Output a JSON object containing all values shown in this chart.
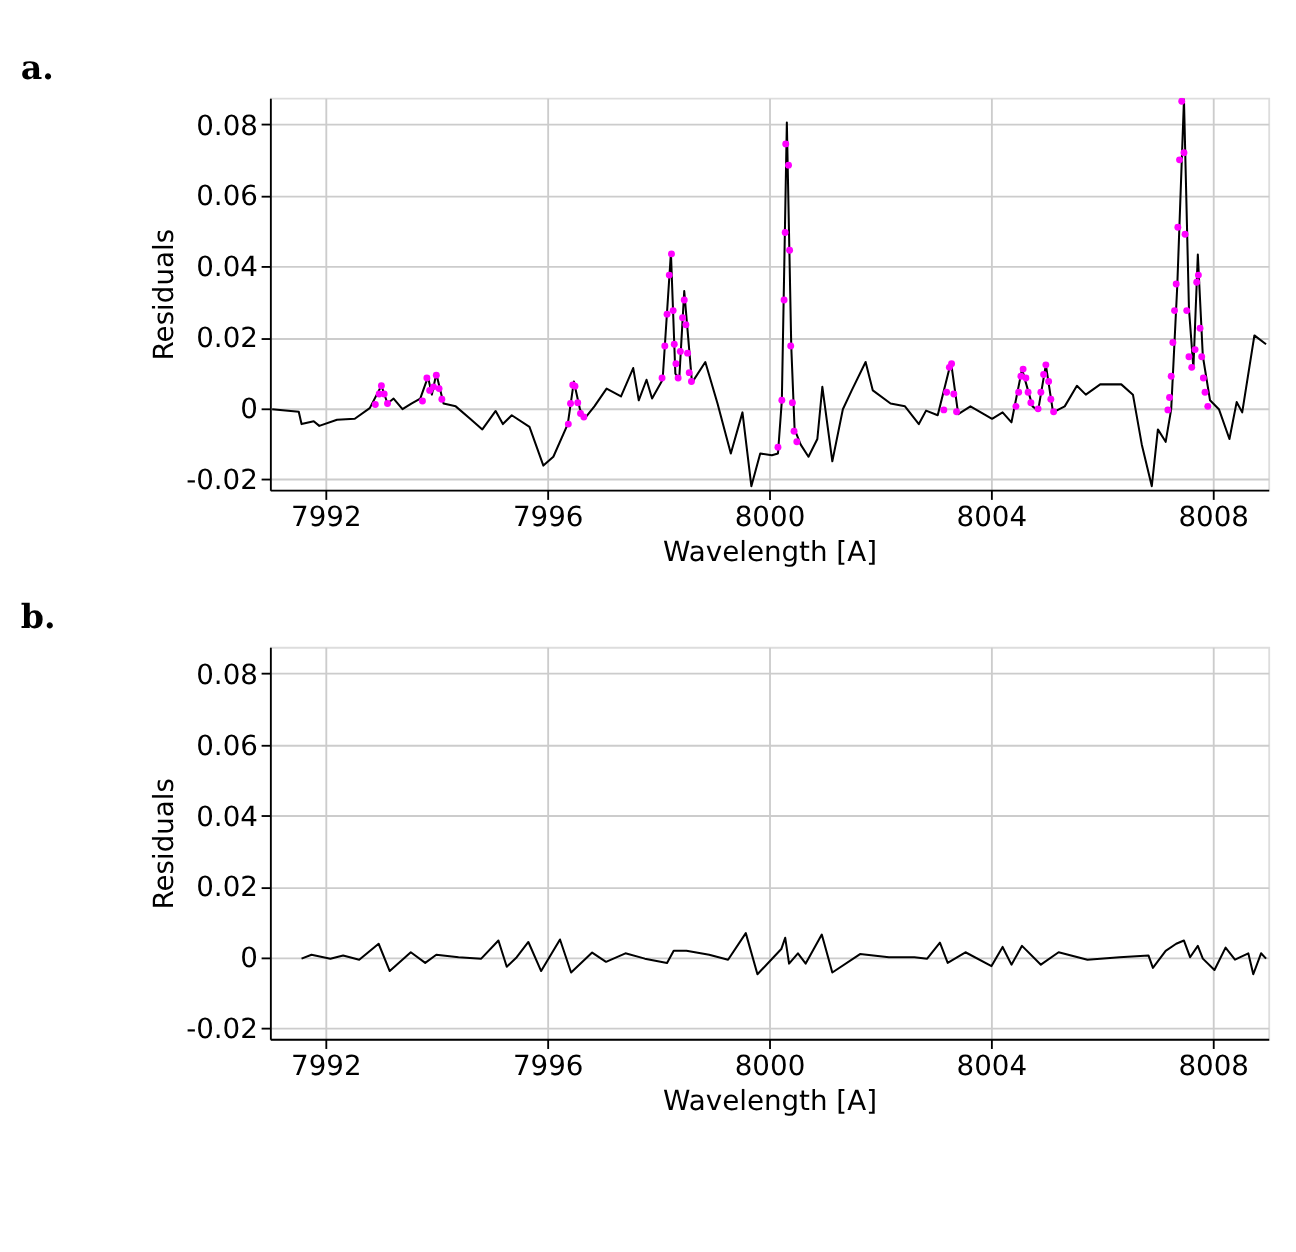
{
  "chart_data": [
    {
      "type": "line",
      "title": "a.",
      "xlabel": "Wavelength [A]",
      "ylabel": "Residuals",
      "xlim": [
        7991,
        8009
      ],
      "ylim": [
        -0.023,
        0.0875
      ],
      "xticks": [
        7992,
        7996,
        8000,
        8004,
        8008
      ],
      "yticks": [
        -0.02,
        0,
        0.02,
        0.04,
        0.06,
        0.08
      ],
      "grid": true,
      "series": [
        {
          "color": "#000000",
          "x": [
            7991.04,
            7991.52,
            7991.57,
            7991.79,
            7991.89,
            7992.21,
            7992.53,
            7992.8,
            7993.01,
            7993.12,
            7993.23,
            7993.39,
            7993.55,
            7993.71,
            7993.85,
            7993.92,
            7994.0,
            7994.13,
            7994.35,
            7994.61,
            7994.83,
            7995.07,
            7995.2,
            7995.36,
            7995.68,
            7995.93,
            7996.11,
            7996.37,
            7996.48,
            7996.59,
            7996.67,
            7996.85,
            7997.07,
            7997.33,
            7997.55,
            7997.65,
            7997.79,
            7997.89,
            7998.08,
            7998.23,
            7998.31,
            7998.38,
            7998.47,
            7998.61,
            7998.85,
            7999.07,
            7999.31,
            7999.52,
            7999.68,
            7999.84,
            8000.05,
            8000.16,
            8000.23,
            8000.32,
            8000.4,
            8000.46,
            8000.57,
            8000.71,
            8000.87,
            8000.96,
            8001.14,
            8001.33,
            8001.49,
            8001.74,
            8001.87,
            8002.19,
            8002.45,
            8002.7,
            8002.83,
            8003.04,
            8003.28,
            8003.41,
            8003.63,
            8004.02,
            8004.21,
            8004.37,
            8004.56,
            8004.75,
            8004.85,
            8004.99,
            8005.12,
            8005.33,
            8005.55,
            8005.71,
            8005.97,
            8006.35,
            8006.56,
            8006.72,
            8006.9,
            8007.01,
            8007.15,
            8007.25,
            8007.36,
            8007.48,
            8007.57,
            8007.65,
            8007.73,
            8007.82,
            8007.95,
            8008.11,
            8008.3,
            8008.43,
            8008.53,
            8008.75,
            8008.96
          ],
          "values": [
            -0.0003,
            -0.001,
            -0.0045,
            -0.0037,
            -0.005,
            -0.0033,
            -0.003,
            0,
            0.0063,
            0.0013,
            0.0027,
            -0.0003,
            0.0013,
            0.0027,
            0.0088,
            0.0038,
            0.0097,
            0.0013,
            0.0005,
            -0.003,
            -0.006,
            -0.0008,
            -0.0045,
            -0.002,
            -0.0053,
            -0.0162,
            -0.0137,
            -0.0045,
            0.0075,
            -0.0003,
            -0.003,
            0.0005,
            0.0055,
            0.0033,
            0.0113,
            0.0022,
            0.008,
            0.0027,
            0.008,
            0.0438,
            0.0097,
            0.0083,
            0.033,
            0.0072,
            0.013,
            0.0013,
            -0.0128,
            -0.0012,
            -0.022,
            -0.0128,
            -0.0133,
            -0.0128,
            0.0022,
            0.0805,
            0.0172,
            -0.006,
            -0.0103,
            -0.0137,
            -0.0087,
            0.006,
            -0.015,
            -0.0003,
            0.005,
            0.013,
            0.005,
            0.0013,
            0.0005,
            -0.0045,
            -0.0007,
            -0.002,
            0.013,
            -0.0017,
            0.0005,
            -0.003,
            -0.0012,
            -0.004,
            0.011,
            0.0005,
            -0.0007,
            0.0122,
            -0.0012,
            0.0005,
            0.0063,
            0.0038,
            0.0067,
            0.0067,
            0.0038,
            -0.0103,
            -0.022,
            -0.006,
            -0.0095,
            -0.0003,
            0.0347,
            0.087,
            0.028,
            0.0113,
            0.0433,
            0.0147,
            0.0022,
            -0.0003,
            -0.0087,
            0.0017,
            -0.0012,
            0.0205,
            0.018
          ]
        },
        {
          "type": "scatter",
          "color": "#ff00ff",
          "marker": "circle",
          "x": [
            7992.9,
            7992.97,
            7993.01,
            7993.06,
            7993.12,
            7993.75,
            7993.83,
            7993.88,
            7993.95,
            7994.0,
            7994.05,
            7994.1,
            7996.38,
            7996.42,
            7996.46,
            7996.5,
            7996.55,
            7996.6,
            7996.66,
            7998.07,
            7998.12,
            7998.16,
            7998.2,
            7998.24,
            7998.27,
            7998.29,
            7998.32,
            7998.36,
            7998.4,
            7998.44,
            7998.47,
            7998.5,
            7998.53,
            7998.56,
            7998.6,
            8000.16,
            8000.23,
            8000.27,
            8000.29,
            8000.3,
            8000.35,
            8000.37,
            8000.39,
            8000.42,
            8000.45,
            8000.5,
            8003.15,
            8003.2,
            8003.25,
            8003.29,
            8003.33,
            8003.38,
            8004.45,
            8004.5,
            8004.54,
            8004.58,
            8004.63,
            8004.67,
            8004.72,
            8004.85,
            8004.9,
            8004.95,
            8004.99,
            8005.04,
            8005.08,
            8005.13,
            8007.19,
            8007.22,
            8007.25,
            8007.28,
            8007.31,
            8007.34,
            8007.37,
            8007.4,
            8007.44,
            8007.48,
            8007.5,
            8007.53,
            8007.57,
            8007.62,
            8007.68,
            8007.71,
            8007.74,
            8007.77,
            8007.8,
            8007.83,
            8007.86,
            8007.91
          ],
          "values": [
            0.001,
            0.004,
            0.0063,
            0.004,
            0.0013,
            0.002,
            0.0085,
            0.005,
            0.006,
            0.0093,
            0.0055,
            0.0025,
            -0.0045,
            0.0013,
            0.0065,
            0.0062,
            0.0015,
            -0.0015,
            -0.0025,
            0.0085,
            0.0175,
            0.0265,
            0.0375,
            0.0435,
            0.0275,
            0.018,
            0.0125,
            0.0085,
            0.016,
            0.0255,
            0.0305,
            0.0235,
            0.0155,
            0.01,
            0.0075,
            -0.011,
            0.0022,
            0.0305,
            0.0495,
            0.0745,
            0.0685,
            0.0445,
            0.0175,
            0.0015,
            -0.0065,
            -0.0095,
            -0.0005,
            0.0045,
            0.0115,
            0.0125,
            0.004,
            -0.001,
            0.0005,
            0.0045,
            0.009,
            0.011,
            0.0085,
            0.0045,
            0.0015,
            -0.0002,
            0.0045,
            0.0095,
            0.0122,
            0.0075,
            0.0025,
            -0.001,
            -0.0005,
            0.003,
            0.009,
            0.0185,
            0.0275,
            0.035,
            0.051,
            0.07,
            0.0865,
            0.072,
            0.049,
            0.0275,
            0.0145,
            0.0115,
            0.0165,
            0.0355,
            0.0375,
            0.0225,
            0.0145,
            0.0085,
            0.0045,
            0.0005
          ]
        }
      ]
    },
    {
      "type": "line",
      "title": "b.",
      "xlabel": "Wavelength [A]",
      "ylabel": "Residuals",
      "xlim": [
        7991,
        8009
      ],
      "ylim": [
        -0.023,
        0.0875
      ],
      "xticks": [
        7992,
        7996,
        8000,
        8004,
        8008
      ],
      "yticks": [
        -0.02,
        0,
        0.02,
        0.04,
        0.06,
        0.08
      ],
      "grid": true,
      "series": [
        {
          "color": "#000000",
          "x": [
            7991.57,
            7991.75,
            7992.09,
            7992.32,
            7992.61,
            7992.96,
            7993.16,
            7993.54,
            7993.8,
            7994.0,
            7994.4,
            7994.81,
            7995.12,
            7995.27,
            7995.45,
            7995.66,
            7995.89,
            7996.23,
            7996.43,
            7996.81,
            7997.06,
            7997.41,
            7997.76,
            7998.16,
            7998.28,
            7998.51,
            7998.92,
            7999.26,
            7999.58,
            7999.79,
            8000.08,
            8000.22,
            8000.29,
            8000.36,
            8000.52,
            8000.66,
            8000.95,
            8001.14,
            8001.64,
            8002.16,
            8002.62,
            8002.85,
            8003.08,
            8003.22,
            8003.54,
            8004.01,
            8004.21,
            8004.37,
            8004.56,
            8004.9,
            8005.22,
            8005.74,
            8006.32,
            8006.84,
            8006.92,
            8007.15,
            8007.34,
            8007.48,
            8007.59,
            8007.73,
            8007.82,
            8008.03,
            8008.23,
            8008.4,
            8008.64,
            8008.73,
            8008.87,
            8008.96
          ],
          "values": [
            -0.0004,
            0.0007,
            -0.0004,
            0.0005,
            -0.0007,
            0.0038,
            -0.0039,
            0.0014,
            -0.0016,
            0.0007,
            0,
            -0.0004,
            0.0047,
            -0.0027,
            0,
            0.0043,
            -0.0039,
            0.005,
            -0.0043,
            0.0013,
            -0.0013,
            0.0011,
            -0.0004,
            -0.0016,
            0.0018,
            0.0018,
            0.0007,
            -0.0007,
            0.0068,
            -0.0048,
            0,
            0.0023,
            0.0055,
            -0.0018,
            0.0011,
            -0.0018,
            0.0064,
            -0.0043,
            0.0009,
            0,
            0,
            -0.0004,
            0.0041,
            -0.0016,
            0.0014,
            -0.0025,
            0.0029,
            -0.0021,
            0.0032,
            -0.0021,
            0.0014,
            -0.0007,
            0,
            0.0005,
            -0.003,
            0.0018,
            0.0038,
            0.0047,
            0,
            0.0032,
            -0.0004,
            -0.0036,
            0.0027,
            -0.0007,
            0.0011,
            -0.0048,
            0.0011,
            -0.0004
          ]
        }
      ]
    }
  ]
}
